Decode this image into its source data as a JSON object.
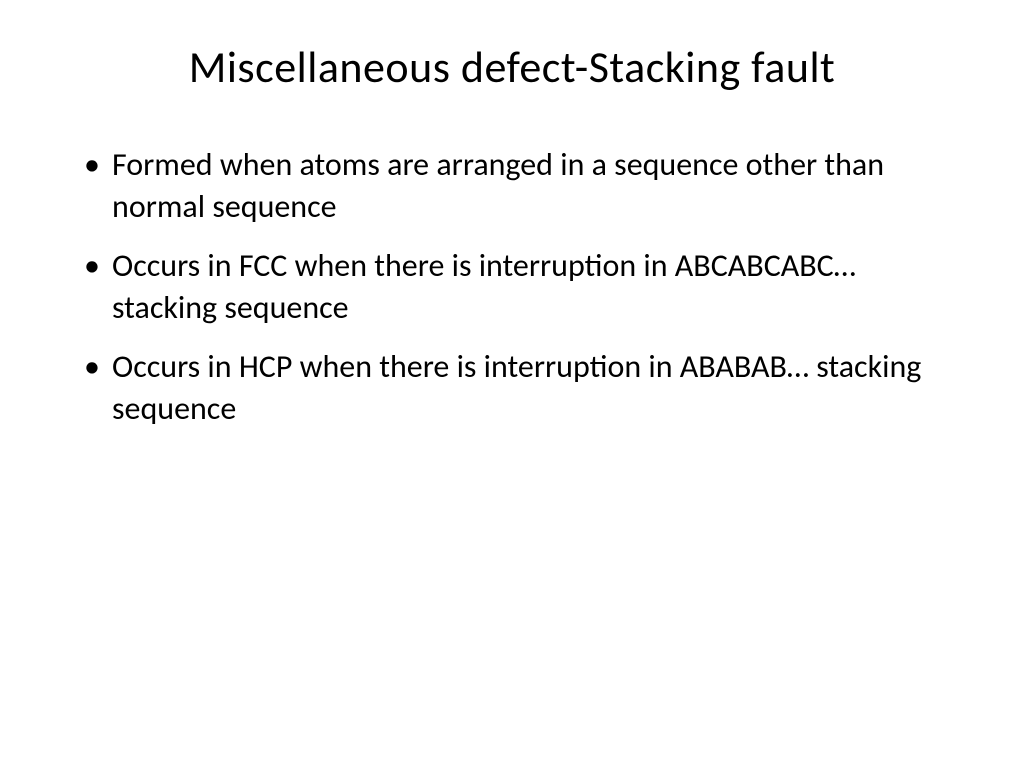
{
  "slide": {
    "title": "Miscellaneous defect-Stacking fault",
    "bullets": [
      "Formed when  atoms are arranged in a sequence other than normal sequence",
      "Occurs in FCC when there is interruption in ABCABCABC… stacking sequence",
      "Occurs in HCP when there is interruption in ABABAB… stacking sequence"
    ],
    "styling": {
      "background_color": "#ffffff",
      "text_color": "#000000",
      "title_fontsize": 44,
      "title_fontweight": 400,
      "body_fontsize": 32,
      "font_family": "Calibri",
      "bullet_char": "•",
      "line_height": 1.3
    }
  }
}
